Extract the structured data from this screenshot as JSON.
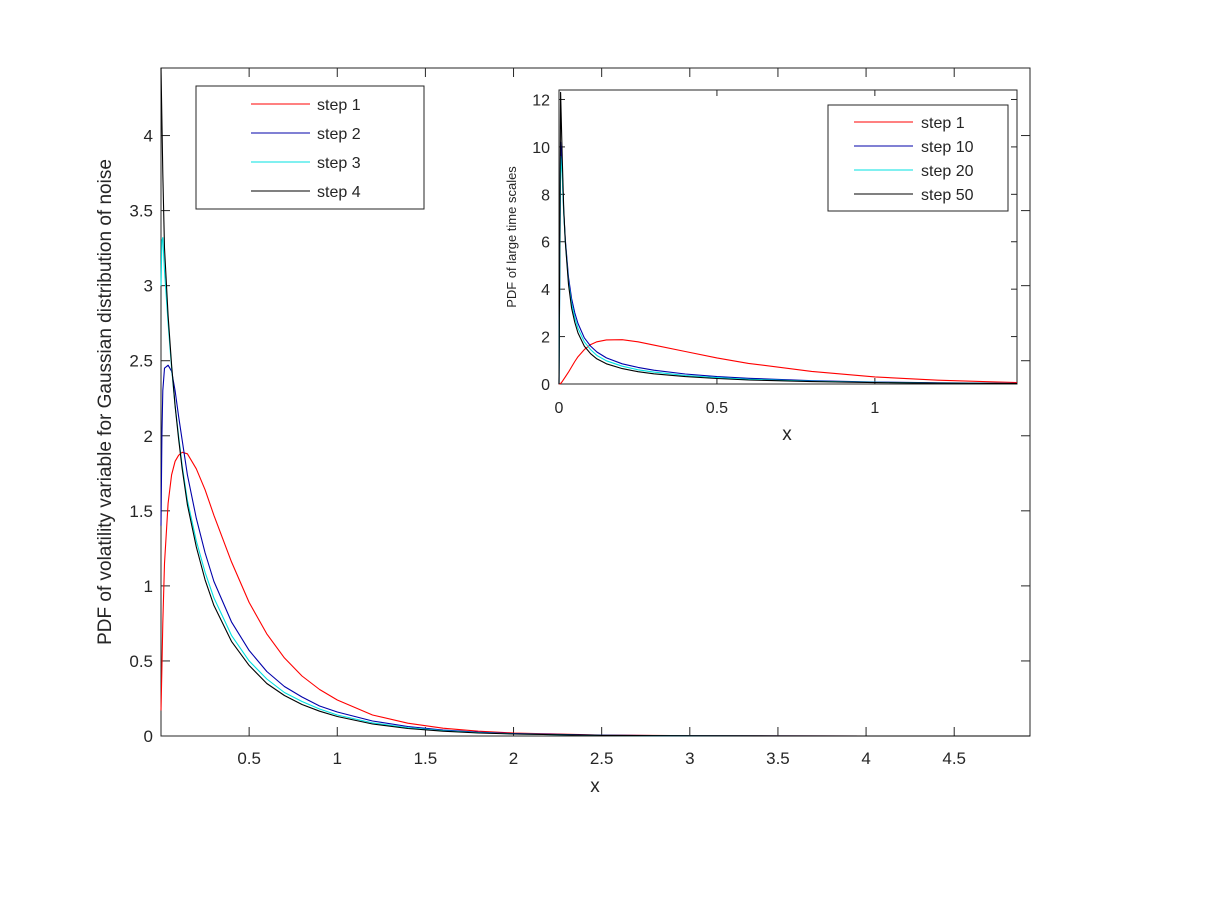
{
  "colors": {
    "step_red": "#ff0000",
    "step_blue": "#0000aa",
    "step_cyan": "#00e0e0",
    "step_black": "#000000",
    "axis": "#262626",
    "background": "#ffffff"
  },
  "chart_data": [
    {
      "type": "line",
      "title": "",
      "xlabel": "x",
      "ylabel": "PDF of volatility variable for Gaussian distribution of noise",
      "xlim": [
        0,
        4.93
      ],
      "ylim": [
        0,
        4.45
      ],
      "grid": false,
      "legend_position": "top-left",
      "x_ticks": [
        0.5,
        1,
        1.5,
        2,
        2.5,
        3,
        3.5,
        4,
        4.5
      ],
      "x_tick_labels": [
        "0.5",
        "1",
        "1.5",
        "2",
        "2.5",
        "3",
        "3.5",
        "4",
        "4.5"
      ],
      "y_ticks": [
        0,
        0.5,
        1,
        1.5,
        2,
        2.5,
        3,
        3.5,
        4
      ],
      "y_tick_labels": [
        "0",
        "0.5",
        "1",
        "1.5",
        "2",
        "2.5",
        "3",
        "3.5",
        "4"
      ],
      "x": [
        0,
        0.005,
        0.01,
        0.02,
        0.04,
        0.06,
        0.08,
        0.1,
        0.12,
        0.15,
        0.2,
        0.25,
        0.3,
        0.4,
        0.5,
        0.6,
        0.7,
        0.8,
        0.9,
        1.0,
        1.2,
        1.4,
        1.6,
        1.8,
        2.0,
        2.5,
        3.0,
        3.5,
        4.0,
        4.5,
        4.93
      ],
      "series": [
        {
          "name": "step 1",
          "color": "#ff0000",
          "values": [
            0.17,
            0.45,
            0.75,
            1.15,
            1.55,
            1.74,
            1.83,
            1.87,
            1.89,
            1.88,
            1.78,
            1.64,
            1.47,
            1.16,
            0.89,
            0.68,
            0.52,
            0.4,
            0.31,
            0.24,
            0.14,
            0.085,
            0.052,
            0.032,
            0.02,
            0.006,
            0.002,
            0.001,
            0,
            0,
            0
          ]
        },
        {
          "name": "step 2",
          "color": "#0000aa",
          "values": [
            1.4,
            2.0,
            2.3,
            2.45,
            2.47,
            2.43,
            2.3,
            2.13,
            1.97,
            1.74,
            1.45,
            1.22,
            1.03,
            0.76,
            0.57,
            0.43,
            0.33,
            0.26,
            0.2,
            0.16,
            0.1,
            0.063,
            0.04,
            0.025,
            0.016,
            0.005,
            0.0015,
            0.0005,
            0,
            0,
            0
          ]
        },
        {
          "name": "step 3",
          "color": "#00e0e0",
          "values": [
            3.0,
            3.3,
            3.32,
            3.1,
            2.75,
            2.45,
            2.2,
            2.0,
            1.8,
            1.57,
            1.3,
            1.09,
            0.92,
            0.67,
            0.5,
            0.38,
            0.29,
            0.23,
            0.18,
            0.14,
            0.087,
            0.055,
            0.035,
            0.022,
            0.014,
            0.004,
            0.0012,
            0.0004,
            0,
            0,
            0
          ]
        },
        {
          "name": "step 4",
          "color": "#000000",
          "values": [
            4.45,
            4.1,
            3.75,
            3.25,
            2.8,
            2.47,
            2.2,
            1.98,
            1.78,
            1.54,
            1.26,
            1.04,
            0.87,
            0.63,
            0.47,
            0.35,
            0.27,
            0.21,
            0.165,
            0.13,
            0.08,
            0.05,
            0.032,
            0.02,
            0.013,
            0.004,
            0.001,
            0.0003,
            0,
            0,
            0
          ]
        }
      ]
    },
    {
      "type": "line",
      "title": "",
      "xlabel": "x",
      "ylabel": "PDF of large time scales",
      "xlim": [
        0,
        1.45
      ],
      "ylim": [
        0,
        12.4
      ],
      "grid": false,
      "legend_position": "top-right",
      "x_ticks": [
        0,
        0.5,
        1
      ],
      "x_tick_labels": [
        "0",
        "0.5",
        "1"
      ],
      "y_ticks": [
        0,
        2,
        4,
        6,
        8,
        10,
        12
      ],
      "y_tick_labels": [
        "0",
        "2",
        "4",
        "6",
        "8",
        "10",
        "12"
      ],
      "x": [
        0,
        0.005,
        0.01,
        0.015,
        0.02,
        0.03,
        0.04,
        0.05,
        0.06,
        0.08,
        0.1,
        0.12,
        0.15,
        0.2,
        0.25,
        0.3,
        0.4,
        0.5,
        0.6,
        0.8,
        1.0,
        1.2,
        1.45
      ],
      "series": [
        {
          "name": "step 1",
          "color": "#ff0000",
          "values": [
            0,
            0.02,
            0.1,
            0.2,
            0.3,
            0.5,
            0.72,
            0.95,
            1.15,
            1.45,
            1.66,
            1.78,
            1.86,
            1.87,
            1.78,
            1.64,
            1.37,
            1.1,
            0.87,
            0.53,
            0.3,
            0.16,
            0.06
          ]
        },
        {
          "name": "step 10",
          "color": "#0000aa",
          "values": [
            0,
            10.2,
            9.0,
            7.3,
            6.1,
            4.5,
            3.6,
            3.0,
            2.55,
            1.95,
            1.6,
            1.35,
            1.1,
            0.85,
            0.7,
            0.58,
            0.42,
            0.31,
            0.24,
            0.14,
            0.085,
            0.05,
            0.025
          ]
        },
        {
          "name": "step 20",
          "color": "#00e0e0",
          "values": [
            0,
            9.6,
            8.8,
            7.2,
            6.0,
            4.3,
            3.4,
            2.8,
            2.35,
            1.78,
            1.45,
            1.2,
            0.98,
            0.75,
            0.6,
            0.5,
            0.36,
            0.27,
            0.2,
            0.12,
            0.07,
            0.04,
            0.02
          ]
        },
        {
          "name": "step 50",
          "color": "#000000",
          "values": [
            0,
            12.3,
            9.6,
            7.4,
            6.0,
            4.2,
            3.2,
            2.6,
            2.15,
            1.6,
            1.28,
            1.06,
            0.85,
            0.65,
            0.52,
            0.43,
            0.31,
            0.23,
            0.17,
            0.1,
            0.06,
            0.035,
            0.015
          ]
        }
      ]
    }
  ]
}
